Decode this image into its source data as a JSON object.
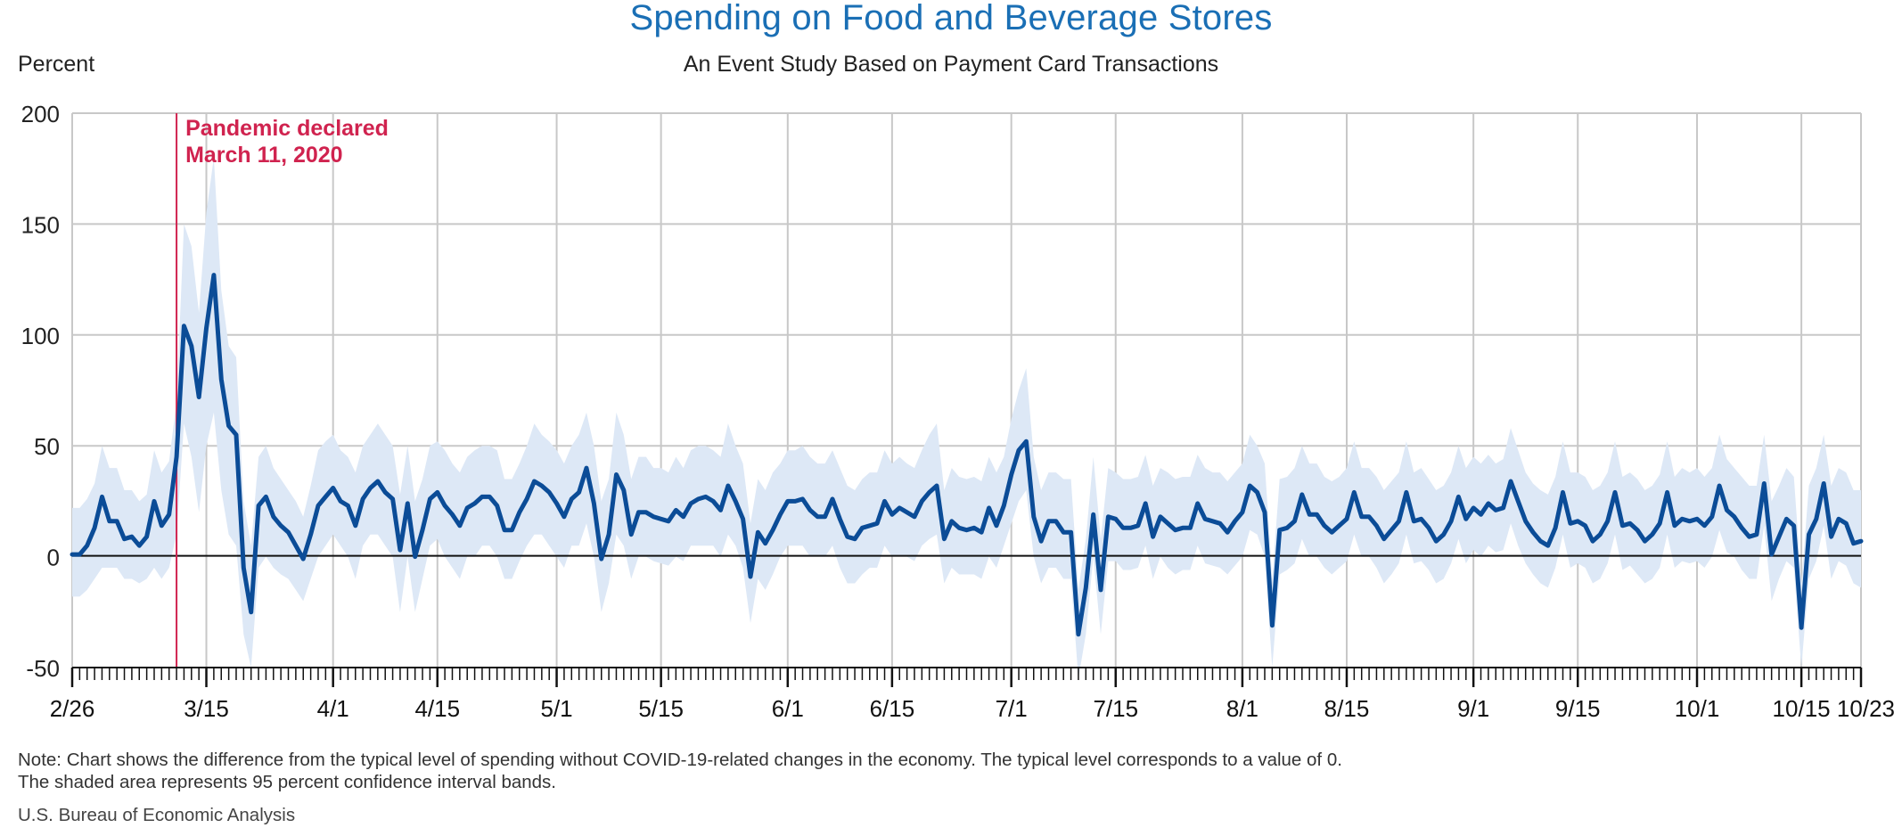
{
  "title": "Spending on Food and Beverage Stores",
  "subtitle": "An Event Study Based on Payment Card Transactions",
  "y_unit": "Percent",
  "note_line1": "Note: Chart shows the difference from the typical level of spending without COVID-19-related changes in the economy. The typical level corresponds to a value of 0.",
  "note_line2": "The shaded area represents 95 percent confidence interval bands.",
  "source": "U.S. Bureau of Economic Analysis",
  "colors": {
    "title": "#1a6fb5",
    "line": "#0b4c97",
    "band": "#dde8f6",
    "event": "#d0234f",
    "grid": "#c8c8c8"
  },
  "chart_data": {
    "type": "line",
    "x_start": "2020-02-26",
    "x_end": "2020-10-23",
    "ylim": [
      -50,
      200
    ],
    "y_ticks": [
      "-50",
      "0",
      "50",
      "100",
      "150",
      "200"
    ],
    "x_tick_labels": [
      {
        "date": "2020-02-26",
        "label": "2/26"
      },
      {
        "date": "2020-03-15",
        "label": "3/15"
      },
      {
        "date": "2020-04-01",
        "label": "4/1"
      },
      {
        "date": "2020-04-15",
        "label": "4/15"
      },
      {
        "date": "2020-05-01",
        "label": "5/1"
      },
      {
        "date": "2020-05-15",
        "label": "5/15"
      },
      {
        "date": "2020-06-01",
        "label": "6/1"
      },
      {
        "date": "2020-06-15",
        "label": "6/15"
      },
      {
        "date": "2020-07-01",
        "label": "7/1"
      },
      {
        "date": "2020-07-15",
        "label": "7/15"
      },
      {
        "date": "2020-08-01",
        "label": "8/1"
      },
      {
        "date": "2020-08-15",
        "label": "8/15"
      },
      {
        "date": "2020-09-01",
        "label": "9/1"
      },
      {
        "date": "2020-09-15",
        "label": "9/15"
      },
      {
        "date": "2020-10-01",
        "label": "10/1"
      },
      {
        "date": "2020-10-15",
        "label": "10/15"
      },
      {
        "date": "2020-10-23",
        "label": "10/23"
      }
    ],
    "event": {
      "date": "2020-03-11",
      "line1": "Pandemic declared",
      "line2": "March 11, 2020"
    },
    "grid": true,
    "series": [
      {
        "values": [
          1,
          1,
          5,
          13,
          27,
          16,
          16,
          8,
          9,
          5,
          9,
          25,
          14,
          19,
          45,
          104,
          95,
          72,
          103,
          127,
          80,
          59,
          55,
          -5,
          -25,
          23,
          27,
          18,
          14,
          11,
          5,
          -1,
          10,
          23,
          27,
          31,
          25,
          23,
          14,
          26,
          31,
          34,
          29,
          26,
          3,
          24,
          0,
          12,
          26,
          29,
          23,
          19,
          14,
          22,
          24,
          27,
          27,
          23,
          12,
          12,
          20,
          26,
          34,
          32,
          29,
          24,
          18,
          26,
          29,
          40,
          24,
          -1,
          10,
          37,
          30,
          10,
          20,
          20,
          18,
          17,
          16,
          21,
          18,
          24,
          26,
          27,
          25,
          21,
          32,
          25,
          17,
          -9,
          11,
          6,
          12,
          19,
          25,
          25,
          26,
          21,
          18,
          18,
          26,
          17,
          9,
          8,
          13,
          14,
          15,
          25,
          19,
          22,
          20,
          18,
          25,
          29,
          32,
          8,
          16,
          13,
          12,
          13,
          11,
          22,
          14,
          23,
          37,
          48,
          52,
          18,
          7,
          16,
          16,
          11,
          11,
          -35,
          -14,
          19,
          -15,
          18,
          17,
          13,
          13,
          14,
          24,
          9,
          18,
          15,
          12,
          13,
          13,
          24,
          17,
          16,
          15,
          11,
          16,
          20,
          32,
          29,
          20,
          -31,
          12,
          13,
          16,
          28,
          19,
          19,
          14,
          11,
          14,
          17,
          29,
          18,
          18,
          14,
          8,
          12,
          16,
          29,
          16,
          17,
          13,
          7,
          10,
          16,
          27,
          17,
          22,
          19,
          24,
          21,
          22,
          34,
          25,
          16,
          11,
          7,
          5,
          13,
          29,
          15,
          16,
          14,
          7,
          10,
          16,
          29,
          14,
          15,
          12,
          7,
          10,
          15,
          29,
          14,
          17,
          16,
          17,
          14,
          18,
          32,
          21,
          18,
          13,
          9,
          10,
          33,
          1,
          9,
          17,
          14,
          -32,
          10,
          17,
          33,
          9,
          17,
          15,
          6,
          7
        ],
        "lower": [
          -18,
          -18,
          -15,
          -10,
          -5,
          -5,
          -5,
          -10,
          -10,
          -12,
          -10,
          -5,
          -10,
          -5,
          10,
          60,
          45,
          20,
          50,
          65,
          30,
          10,
          5,
          -35,
          -50,
          -5,
          0,
          -5,
          -8,
          -10,
          -15,
          -20,
          -10,
          0,
          5,
          10,
          5,
          0,
          -10,
          5,
          10,
          10,
          5,
          0,
          -25,
          0,
          -25,
          -10,
          5,
          8,
          0,
          -5,
          -10,
          0,
          0,
          5,
          5,
          0,
          -10,
          -10,
          -2,
          5,
          10,
          10,
          5,
          0,
          -5,
          5,
          5,
          15,
          0,
          -25,
          -12,
          10,
          5,
          -10,
          0,
          0,
          -2,
          -3,
          -4,
          0,
          -2,
          5,
          5,
          5,
          5,
          0,
          10,
          5,
          -5,
          -30,
          -10,
          -15,
          -8,
          0,
          5,
          5,
          5,
          0,
          0,
          0,
          5,
          -5,
          -12,
          -12,
          -8,
          -5,
          -5,
          5,
          0,
          0,
          0,
          -2,
          5,
          8,
          10,
          -12,
          -5,
          -8,
          -8,
          -8,
          -10,
          0,
          -5,
          5,
          15,
          25,
          30,
          0,
          -12,
          -5,
          -5,
          -10,
          -10,
          -55,
          -35,
          0,
          -35,
          -2,
          -2,
          -6,
          -6,
          -5,
          5,
          -10,
          0,
          -5,
          -8,
          -6,
          -6,
          5,
          -3,
          -4,
          -5,
          -8,
          -4,
          0,
          12,
          10,
          0,
          -50,
          -8,
          -6,
          -3,
          8,
          0,
          0,
          -5,
          -8,
          -5,
          -2,
          10,
          0,
          0,
          -5,
          -12,
          -8,
          -3,
          10,
          -3,
          -2,
          -6,
          -12,
          -10,
          -3,
          8,
          -3,
          3,
          0,
          5,
          2,
          3,
          15,
          5,
          -3,
          -8,
          -12,
          -14,
          -5,
          10,
          -5,
          -3,
          -5,
          -12,
          -10,
          -3,
          10,
          -6,
          -4,
          -8,
          -12,
          -10,
          -5,
          10,
          -5,
          -2,
          -3,
          -2,
          -5,
          0,
          12,
          2,
          0,
          -6,
          -10,
          -10,
          14,
          -20,
          -10,
          -2,
          -5,
          -50,
          -10,
          -2,
          14,
          -10,
          -2,
          -4,
          -12,
          -14
        ],
        "upper": [
          22,
          22,
          26,
          33,
          50,
          40,
          40,
          30,
          30,
          25,
          28,
          48,
          38,
          43,
          70,
          150,
          140,
          110,
          155,
          180,
          120,
          95,
          90,
          25,
          5,
          45,
          50,
          40,
          35,
          30,
          25,
          18,
          32,
          48,
          52,
          55,
          48,
          45,
          38,
          50,
          55,
          60,
          55,
          50,
          28,
          50,
          25,
          35,
          50,
          52,
          48,
          42,
          38,
          45,
          48,
          50,
          50,
          48,
          35,
          35,
          42,
          50,
          60,
          55,
          52,
          48,
          42,
          50,
          55,
          65,
          50,
          25,
          35,
          65,
          55,
          35,
          45,
          45,
          40,
          40,
          38,
          45,
          40,
          48,
          50,
          50,
          48,
          45,
          60,
          50,
          42,
          15,
          35,
          30,
          38,
          42,
          48,
          48,
          50,
          45,
          42,
          42,
          48,
          40,
          32,
          30,
          35,
          38,
          38,
          48,
          42,
          45,
          42,
          40,
          48,
          55,
          60,
          30,
          40,
          36,
          35,
          36,
          34,
          45,
          38,
          45,
          62,
          75,
          85,
          45,
          30,
          38,
          38,
          35,
          35,
          -15,
          8,
          45,
          8,
          40,
          38,
          35,
          35,
          36,
          46,
          32,
          40,
          38,
          35,
          36,
          36,
          46,
          40,
          38,
          38,
          34,
          38,
          42,
          55,
          50,
          42,
          -10,
          35,
          36,
          40,
          50,
          42,
          42,
          36,
          34,
          36,
          40,
          52,
          40,
          40,
          36,
          30,
          34,
          38,
          52,
          38,
          40,
          35,
          30,
          32,
          38,
          50,
          40,
          45,
          42,
          46,
          42,
          44,
          58,
          48,
          38,
          33,
          30,
          28,
          36,
          52,
          38,
          38,
          36,
          30,
          32,
          38,
          52,
          36,
          38,
          35,
          30,
          32,
          37,
          52,
          36,
          40,
          38,
          40,
          36,
          40,
          55,
          44,
          40,
          36,
          32,
          32,
          55,
          25,
          32,
          40,
          36,
          -12,
          32,
          40,
          55,
          32,
          40,
          38,
          30,
          30
        ]
      }
    ]
  }
}
